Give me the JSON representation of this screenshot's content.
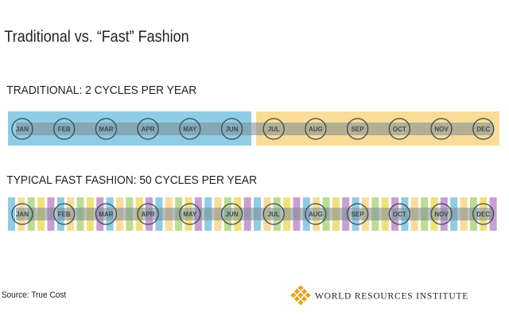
{
  "title": "Traditional vs. “Fast” Fashion",
  "traditional": {
    "label": "TRADITIONAL: 2 CYCLES PER YEAR"
  },
  "fast": {
    "label": "TYPICAL FAST FASHION: 50 CYCLES PER YEAR"
  },
  "months": [
    "JAN",
    "FEB",
    "MAR",
    "APR",
    "MAY",
    "JUN",
    "JUL",
    "AUG",
    "SEP",
    "OCT",
    "NOV",
    "DEC"
  ],
  "source": "Source: True Cost",
  "logo": "WORLD RESOURCES INSTITUTE"
}
